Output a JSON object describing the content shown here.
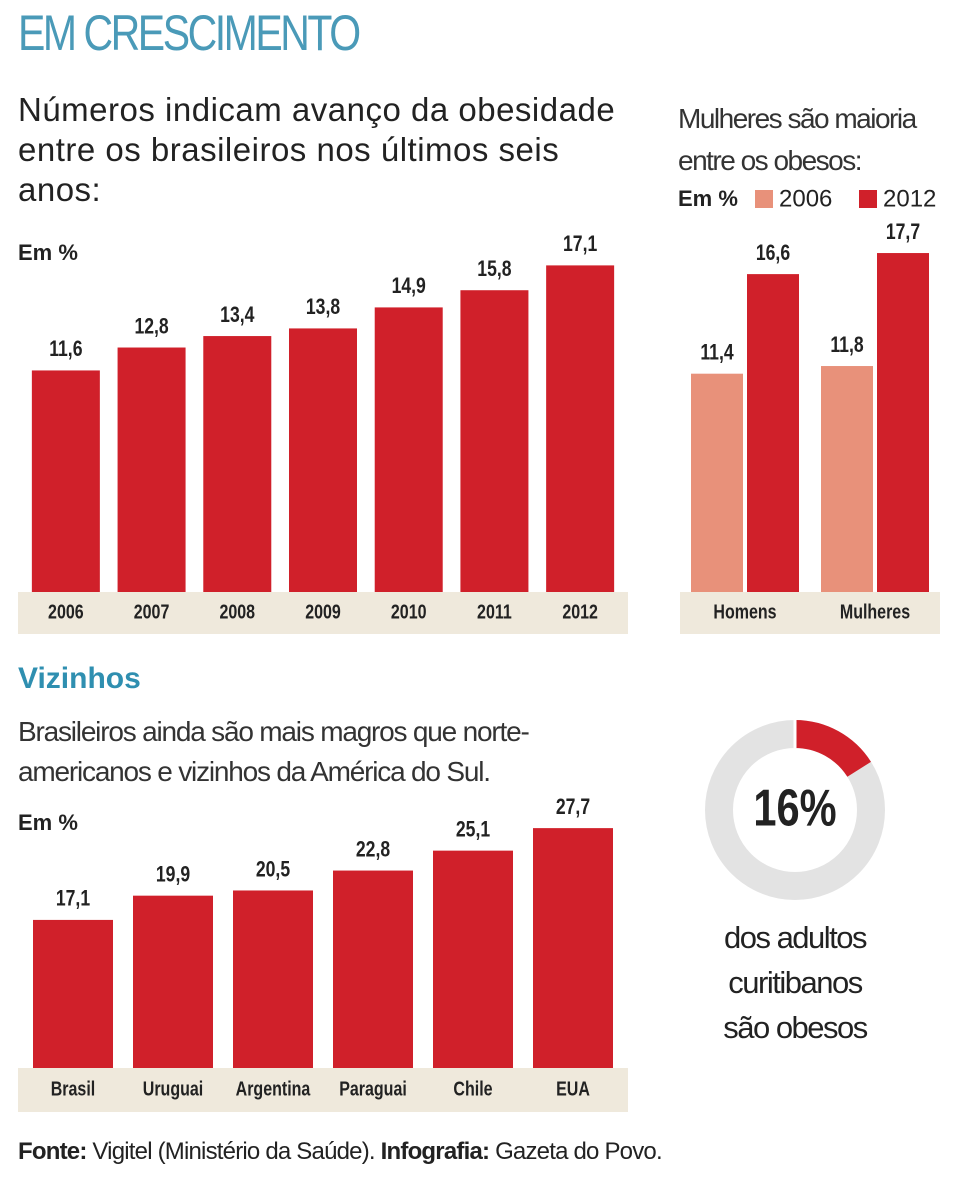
{
  "title": "EM CRESCIMENTO",
  "chart_data": [
    {
      "type": "bar",
      "title": "Números indicam avanço da obesidade entre os brasileiros nos últimos seis anos:",
      "unit_label": "Em %",
      "categories": [
        "2006",
        "2007",
        "2008",
        "2009",
        "2010",
        "2011",
        "2012"
      ],
      "values": [
        11.6,
        12.8,
        13.4,
        13.8,
        14.9,
        15.8,
        17.1
      ],
      "value_labels": [
        "11,6",
        "12,8",
        "13,4",
        "13,8",
        "14,9",
        "15,8",
        "17,1"
      ],
      "color": "#d0202a"
    },
    {
      "type": "grouped-bar",
      "title": "Mulheres são maioria entre os obesos:",
      "unit_label": "Em %",
      "categories": [
        "Homens",
        "Mulheres"
      ],
      "series": [
        {
          "name": "2006",
          "color": "#e8917a",
          "values": [
            11.4,
            11.8
          ],
          "value_labels": [
            "11,4",
            "11,8"
          ]
        },
        {
          "name": "2012",
          "color": "#d0202a",
          "values": [
            16.6,
            17.7
          ],
          "value_labels": [
            "16,6",
            "17,7"
          ]
        }
      ]
    },
    {
      "type": "bar",
      "title": "Vizinhos",
      "subtitle": "Brasileiros ainda são mais magros que norte-americanos e vizinhos da América do Sul.",
      "unit_label": "Em %",
      "categories": [
        "Brasil",
        "Uruguai",
        "Argentina",
        "Paraguai",
        "Chile",
        "EUA"
      ],
      "values": [
        17.1,
        19.9,
        20.5,
        22.8,
        25.1,
        27.7
      ],
      "value_labels": [
        "17,1",
        "19,9",
        "20,5",
        "22,8",
        "25,1",
        "27,7"
      ],
      "color": "#d0202a"
    },
    {
      "type": "donut",
      "values": [
        16
      ],
      "value_labels": [
        "16%"
      ],
      "color": "#d0202a",
      "caption": "dos adultos curitibanos são obesos"
    }
  ],
  "source": {
    "fonte_label": "Fonte:",
    "fonte": "Vigitel (Ministério da Saúde).",
    "infografia_label": "Infografia:",
    "infografia": "Gazeta do Povo."
  }
}
